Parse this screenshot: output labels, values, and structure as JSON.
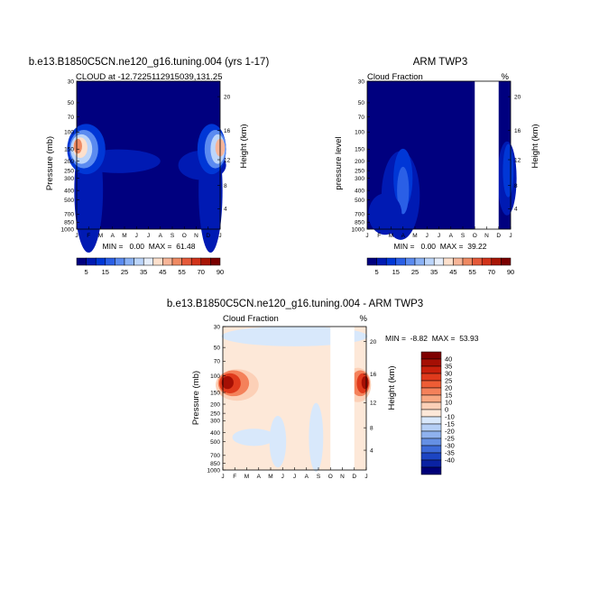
{
  "chart_data": [
    {
      "type": "heatmap",
      "title": "b.e13.B1850C5CN.ne120_g16.tuning.004 (yrs 1-17)",
      "subtitle_left": "CLOUD at -12.7225112915039,131.25",
      "subtitle_right": "",
      "ylabel": "Pressure (mb)",
      "ylabel_right": "Height (km)",
      "x_ticks": [
        "J",
        "F",
        "M",
        "A",
        "M",
        "J",
        "J",
        "A",
        "S",
        "O",
        "N",
        "D",
        "J"
      ],
      "y_ticks": [
        "30",
        "50",
        "70",
        "100",
        "150",
        "200",
        "250",
        "300",
        "400",
        "500",
        "700",
        "850",
        "1000"
      ],
      "height_ticks": [
        "24",
        "20",
        "16",
        "12",
        "8",
        "4"
      ],
      "stats": "MIN =   0.00  MAX =  61.48",
      "zlim": [
        0,
        61.48
      ],
      "missing_months": []
    },
    {
      "type": "heatmap",
      "title": "ARM TWP3",
      "subtitle_left": "Cloud Fraction",
      "subtitle_right": "%",
      "ylabel": "pressure level",
      "ylabel_right": "Height (km)",
      "x_ticks": [
        "J",
        "F",
        "M",
        "A",
        "M",
        "J",
        "J",
        "A",
        "S",
        "O",
        "N",
        "D",
        "J"
      ],
      "y_ticks": [
        "30",
        "50",
        "70",
        "100",
        "150",
        "200",
        "250",
        "300",
        "400",
        "500",
        "700",
        "850",
        "1000"
      ],
      "height_ticks": [
        "24",
        "20",
        "16",
        "12",
        "8",
        "4"
      ],
      "stats": "MIN =   0.00  MAX =  39.22",
      "zlim": [
        0,
        39.22
      ],
      "missing_months": [
        "O",
        "N"
      ]
    },
    {
      "type": "heatmap",
      "title": "b.e13.B1850C5CN.ne120_g16.tuning.004 - ARM TWP3",
      "subtitle_left": "Cloud Fraction",
      "subtitle_right": "%",
      "ylabel": "Pressure (mb)",
      "ylabel_right": "Height (km)",
      "x_ticks": [
        "J",
        "F",
        "M",
        "A",
        "M",
        "J",
        "J",
        "A",
        "S",
        "O",
        "N",
        "D",
        "J"
      ],
      "y_ticks": [
        "30",
        "50",
        "70",
        "100",
        "150",
        "200",
        "250",
        "300",
        "400",
        "500",
        "700",
        "850",
        "1000"
      ],
      "height_ticks": [
        "24",
        "20",
        "16",
        "12",
        "8",
        "4"
      ],
      "stats": "MIN =  -8.82  MAX =  53.93",
      "zlim": [
        -8.82,
        53.93
      ],
      "missing_months": [
        "O",
        "N"
      ]
    }
  ],
  "colorbar_abs": {
    "labels": [
      "5",
      "15",
      "25",
      "35",
      "45",
      "55",
      "70",
      "90"
    ],
    "colors": [
      "#00007f",
      "#001ab3",
      "#0037d6",
      "#2a5fe6",
      "#5b8bf0",
      "#8bb2f5",
      "#bcd5fa",
      "#e6eefb",
      "#fde0cc",
      "#f7b598",
      "#ef8a63",
      "#e55a3a",
      "#d1331a",
      "#a81606",
      "#7a0000"
    ]
  },
  "colorbar_diff": {
    "labels": [
      "40",
      "35",
      "30",
      "25",
      "20",
      "15",
      "10",
      "0",
      "-10",
      "-15",
      "-20",
      "-25",
      "-30",
      "-35",
      "-40"
    ],
    "colors": [
      "#7f0000",
      "#a50f04",
      "#c8200c",
      "#e03a1c",
      "#ee5d35",
      "#f4815a",
      "#f8a882",
      "#fcd0b7",
      "#fde8d8",
      "#d8e8fb",
      "#b5cff5",
      "#8fb2ee",
      "#6590e4",
      "#3d6bd8",
      "#1c45c3",
      "#0a22a3",
      "#000078"
    ]
  }
}
